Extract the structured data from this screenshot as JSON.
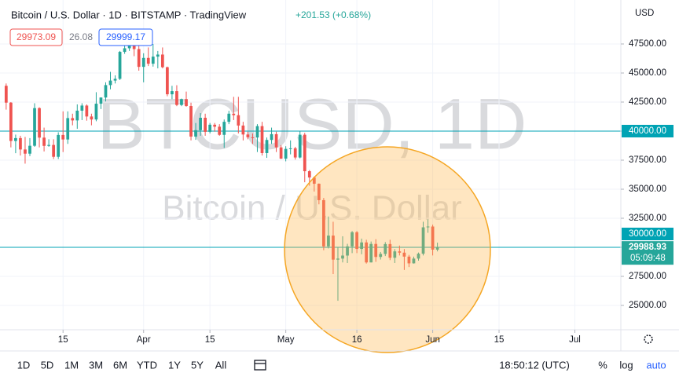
{
  "chart_data": {
    "type": "candlestick",
    "title": "Bitcoin / U.S. Dollar · 1D · BITSTAMP · TradingView",
    "change": "+201.53 (+0.68%)",
    "quote": {
      "bid": 29973.09,
      "spread": 26.08,
      "ask": 29999.17
    },
    "watermark": [
      "BTCUSD, 1D",
      "Bitcoin / U.S. Dollar"
    ],
    "currency": "USD",
    "up_color": "#26a69a",
    "down_color": "#ef5350",
    "log_scale": false,
    "xlim": [
      -1.3,
      129.7
    ],
    "xticks": [
      {
        "value": 12,
        "label": "15"
      },
      {
        "value": 29,
        "label": "Apr"
      },
      {
        "value": 43,
        "label": "15"
      },
      {
        "value": 59,
        "label": "May"
      },
      {
        "value": 74,
        "label": "16"
      },
      {
        "value": 90,
        "label": "Jun"
      },
      {
        "value": 104,
        "label": "15"
      },
      {
        "value": 120,
        "label": "Jul"
      }
    ],
    "ylim": [
      22905,
      51284
    ],
    "yticks": [
      {
        "value": 25000,
        "label": "25000.00"
      },
      {
        "value": 27500,
        "label": "27500.00"
      },
      {
        "value": 30000,
        "label": "30000.00"
      },
      {
        "value": 32500,
        "label": "32500.00"
      },
      {
        "value": 35000,
        "label": "35000.00"
      },
      {
        "value": 37500,
        "label": "37500.00"
      },
      {
        "value": 40000,
        "label": "40000.00"
      },
      {
        "value": 42500,
        "label": "42500.00"
      },
      {
        "value": 45000,
        "label": "45000.00"
      },
      {
        "value": 47500,
        "label": "47500.00"
      }
    ],
    "hlines": [
      {
        "value": 40000,
        "label": "40000.00"
      },
      {
        "value": 30000,
        "label": "30000.00"
      }
    ],
    "hline_color": "#00a3b4",
    "last_price": 29988.93,
    "countdown": "05:09:48",
    "open": [
      43900,
      42450,
      39150,
      39400,
      38420,
      38060,
      38740,
      41980,
      39440,
      38730,
      38810,
      37790,
      39670,
      39280,
      41120,
      40920,
      41760,
      42200,
      41260,
      41000,
      42360,
      42890,
      43960,
      44350,
      44500,
      46820,
      47130,
      47430,
      47060,
      45530,
      46300,
      45800,
      46410,
      46590,
      45500,
      43170,
      43440,
      42250,
      42750,
      42160,
      39530,
      40080,
      41150,
      39940,
      40550,
      40380,
      39680,
      40800,
      41500,
      41370,
      40480,
      39710,
      39470,
      39450,
      40430,
      38110,
      39240,
      39740,
      38600,
      37630,
      38470,
      38520,
      37730,
      39690,
      36550,
      36010,
      35470,
      34060,
      30080,
      31010,
      28940,
      29030,
      29290,
      30080,
      31300,
      29860,
      30420,
      28700,
      30290,
      29170,
      29430,
      30280,
      29100,
      29650,
      29540,
      29200,
      28620,
      29030,
      29450,
      31720,
      31790,
      29800
    ],
    "high": [
      44100,
      42500,
      39700,
      39600,
      39500,
      39400,
      42400,
      42050,
      40300,
      39300,
      39300,
      39900,
      41700,
      41700,
      41500,
      42300,
      42400,
      42300,
      41500,
      43350,
      42900,
      44200,
      45100,
      44800,
      46900,
      48100,
      48200,
      47600,
      47500,
      46700,
      47200,
      47500,
      46900,
      47200,
      45550,
      43900,
      43950,
      42800,
      43400,
      42450,
      40700,
      41550,
      41500,
      40700,
      40700,
      40600,
      41000,
      41750,
      42950,
      42950,
      40800,
      39950,
      39800,
      40600,
      40800,
      39450,
      40300,
      39950,
      38800,
      38700,
      39200,
      38650,
      40000,
      39850,
      36650,
      36100,
      35500,
      34250,
      32650,
      32200,
      30000,
      30950,
      30300,
      31400,
      31400,
      30750,
      30650,
      30500,
      30700,
      29600,
      30450,
      30650,
      29850,
      30150,
      29850,
      29350,
      29200,
      29550,
      32200,
      32400,
      31950,
      30400
    ],
    "low": [
      41850,
      38600,
      38100,
      37900,
      37200,
      37850,
      38650,
      38600,
      38250,
      38650,
      37600,
      37600,
      38200,
      38900,
      40500,
      40200,
      40950,
      40900,
      40500,
      40850,
      41900,
      42550,
      43600,
      44100,
      44400,
      46650,
      46900,
      46450,
      45200,
      44200,
      45600,
      45550,
      45400,
      45400,
      43000,
      42750,
      42150,
      42150,
      42100,
      39200,
      39250,
      39600,
      39600,
      39800,
      39950,
      39600,
      38550,
      40600,
      40950,
      39800,
      39200,
      39300,
      38900,
      38200,
      37900,
      37700,
      38900,
      38200,
      37600,
      37400,
      38000,
      37550,
      37650,
      35600,
      35300,
      34800,
      33700,
      29750,
      29900,
      27700,
      25400,
      28700,
      28650,
      29500,
      29500,
      29400,
      28600,
      28700,
      28750,
      28950,
      29250,
      28900,
      28650,
      29300,
      28050,
      28300,
      28600,
      28850,
      29300,
      31250,
      29300,
      29650
    ],
    "close": [
      42450,
      39150,
      39400,
      38420,
      38060,
      38740,
      41980,
      39440,
      38730,
      38810,
      37790,
      39670,
      39280,
      41120,
      40920,
      41760,
      42200,
      41260,
      41000,
      42360,
      42890,
      43960,
      44350,
      44500,
      46820,
      47130,
      47430,
      47060,
      45530,
      46300,
      45800,
      46410,
      46590,
      45500,
      43170,
      43440,
      42250,
      42750,
      42160,
      39530,
      40080,
      41150,
      39940,
      40550,
      40380,
      39680,
      40800,
      41500,
      41370,
      40480,
      39710,
      39470,
      39450,
      40430,
      38110,
      39240,
      39740,
      38600,
      37630,
      38470,
      38520,
      37730,
      39690,
      36550,
      36010,
      35470,
      34060,
      30080,
      31010,
      28940,
      29030,
      29290,
      30080,
      31300,
      29860,
      30420,
      28700,
      30290,
      29170,
      29430,
      30280,
      29100,
      29650,
      29540,
      29200,
      28620,
      29030,
      29450,
      31720,
      31790,
      29800,
      29989
    ]
  },
  "toolbar": {
    "ranges": [
      "1D",
      "5D",
      "1M",
      "3M",
      "6M",
      "YTD",
      "1Y",
      "5Y",
      "All"
    ],
    "time": "18:50:12 (UTC)",
    "options": [
      "%",
      "log",
      "auto"
    ]
  }
}
